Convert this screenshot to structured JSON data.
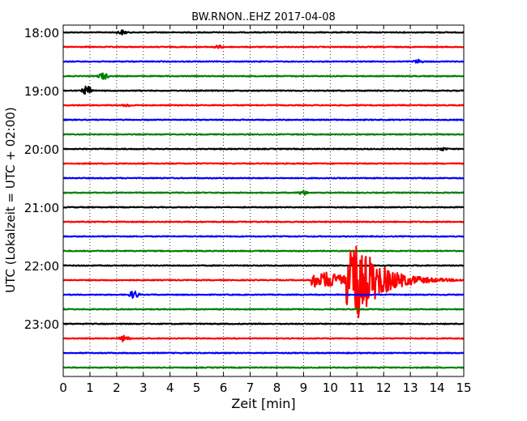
{
  "chart_data": {
    "type": "line",
    "title": "BW.RNON..EHZ 2017-04-08",
    "xlabel": "Zeit  [min]",
    "ylabel": "UTC (Lokalzeit = UTC + 02:00)",
    "xlim": [
      0,
      15
    ],
    "x_ticks": [
      "0",
      "1",
      "2",
      "3",
      "4",
      "5",
      "6",
      "7",
      "8",
      "9",
      "10",
      "11",
      "12",
      "13",
      "14",
      "15"
    ],
    "y_tick_labels": [
      "18:00",
      "19:00",
      "20:00",
      "21:00",
      "22:00",
      "23:00"
    ],
    "grid": "vertical dotted",
    "trace_colors": [
      "#000000",
      "#ff0000",
      "#0000ff",
      "#008000"
    ],
    "traces": [
      {
        "start": "18:00",
        "events": [
          {
            "t": 2.2,
            "amp": 0.15
          }
        ]
      },
      {
        "start": "18:15",
        "events": [
          {
            "t": 5.8,
            "amp": 0.1
          }
        ]
      },
      {
        "start": "18:30",
        "events": [
          {
            "t": 13.3,
            "amp": 0.12
          }
        ]
      },
      {
        "start": "18:45",
        "events": [
          {
            "t": 1.5,
            "amp": 0.25
          }
        ]
      },
      {
        "start": "19:00",
        "events": [
          {
            "t": 0.9,
            "amp": 0.35
          }
        ]
      },
      {
        "start": "19:15",
        "events": [
          {
            "t": 2.4,
            "amp": 0.1
          }
        ]
      },
      {
        "start": "19:30",
        "events": []
      },
      {
        "start": "19:45",
        "events": []
      },
      {
        "start": "20:00",
        "events": [
          {
            "t": 14.2,
            "amp": 0.1
          }
        ]
      },
      {
        "start": "20:15",
        "events": []
      },
      {
        "start": "20:30",
        "events": []
      },
      {
        "start": "20:45",
        "events": [
          {
            "t": 9.0,
            "amp": 0.15
          }
        ]
      },
      {
        "start": "21:00",
        "events": []
      },
      {
        "start": "21:15",
        "events": []
      },
      {
        "start": "21:30",
        "events": []
      },
      {
        "start": "21:45",
        "events": []
      },
      {
        "start": "22:00",
        "events": []
      },
      {
        "start": "22:15",
        "events": [
          {
            "t": 9.3,
            "amp": 3.2,
            "earthquake": true
          }
        ]
      },
      {
        "start": "22:30",
        "events": [
          {
            "t": 2.65,
            "amp": 0.3
          }
        ]
      },
      {
        "start": "22:45",
        "events": []
      },
      {
        "start": "23:00",
        "events": []
      },
      {
        "start": "23:15",
        "events": [
          {
            "t": 2.3,
            "amp": 0.25
          }
        ]
      },
      {
        "start": "23:30",
        "events": []
      },
      {
        "start": "23:45",
        "events": []
      }
    ]
  }
}
